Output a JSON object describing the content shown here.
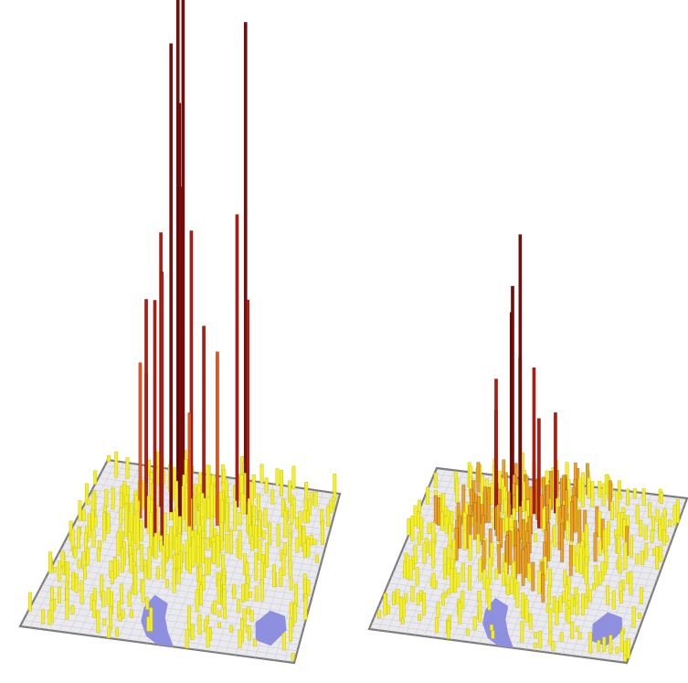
{
  "figure": {
    "panels": [
      {
        "id": "left",
        "description_visible_text": "",
        "peak_count": 18,
        "max_height_level": 1.0
      },
      {
        "id": "right",
        "description_visible_text": "",
        "peak_count": 9,
        "max_height_level": 0.46
      }
    ]
  },
  "colors": {
    "low": "#f4ef2a",
    "low_dark": "#c9c41a",
    "mid": "#f0a020",
    "high": "#e3551b",
    "very_high": "#b21a12",
    "peak": "#7a0b09",
    "ground": "#e9e9ee",
    "grid": "#c9c9d2",
    "water": "#8f8fe0",
    "base_edge": "#7d7d7d"
  }
}
